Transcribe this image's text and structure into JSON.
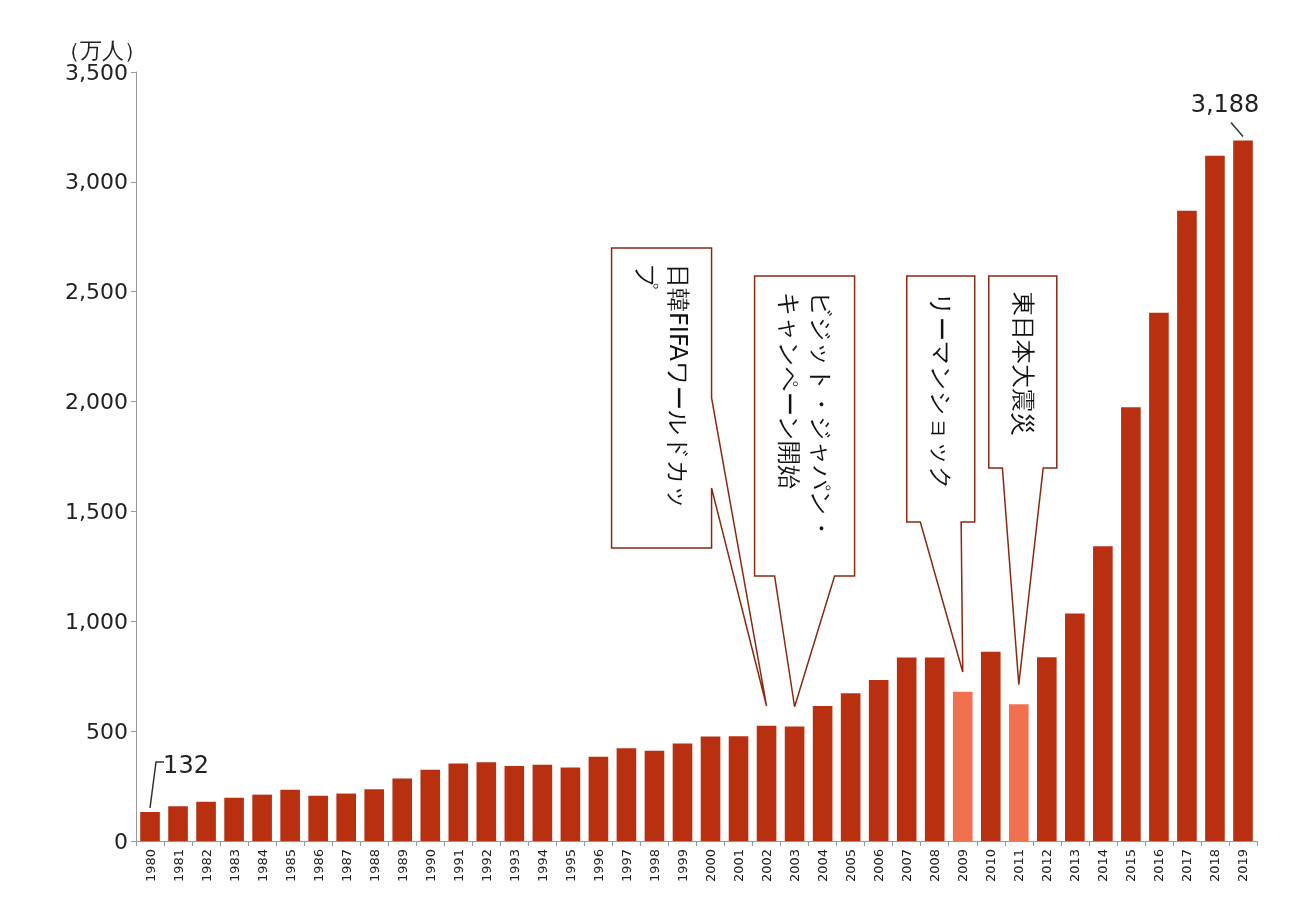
{
  "chart_data": {
    "type": "bar",
    "ylabel": "（万人）",
    "categories": [
      "1980",
      "1981",
      "1982",
      "1983",
      "1984",
      "1985",
      "1986",
      "1987",
      "1988",
      "1989",
      "1990",
      "1991",
      "1992",
      "1993",
      "1994",
      "1995",
      "1996",
      "1997",
      "1998",
      "1999",
      "2000",
      "2001",
      "2002",
      "2003",
      "2004",
      "2005",
      "2006",
      "2007",
      "2008",
      "2009",
      "2010",
      "2011",
      "2012",
      "2013",
      "2014",
      "2015",
      "2016",
      "2017",
      "2018",
      "2019"
    ],
    "values": [
      132,
      158,
      179,
      197,
      211,
      233,
      206,
      216,
      236,
      284,
      324,
      353,
      358,
      341,
      347,
      335,
      384,
      422,
      411,
      444,
      476,
      477,
      524,
      521,
      614,
      673,
      733,
      835,
      835,
      679,
      861,
      622,
      836,
      1036,
      1341,
      1974,
      2404,
      2869,
      3119,
      3188
    ],
    "colors": [
      "#b83010",
      "#b83010",
      "#b83010",
      "#b83010",
      "#b83010",
      "#b83010",
      "#b83010",
      "#b83010",
      "#b83010",
      "#b83010",
      "#b83010",
      "#b83010",
      "#b83010",
      "#b83010",
      "#b83010",
      "#b83010",
      "#b83010",
      "#b83010",
      "#b83010",
      "#b83010",
      "#b83010",
      "#b83010",
      "#b83010",
      "#b83010",
      "#b83010",
      "#b83010",
      "#b83010",
      "#b83010",
      "#b83010",
      "#f07050",
      "#b83010",
      "#f07050",
      "#b83010",
      "#b83010",
      "#b83010",
      "#b83010",
      "#b83010",
      "#b83010",
      "#b83010",
      "#b83010"
    ],
    "value_labels": [
      "132",
      null,
      null,
      null,
      null,
      null,
      null,
      null,
      null,
      null,
      null,
      null,
      null,
      null,
      null,
      null,
      null,
      null,
      null,
      null,
      null,
      null,
      null,
      null,
      null,
      null,
      null,
      null,
      null,
      null,
      null,
      null,
      null,
      null,
      null,
      null,
      null,
      null,
      null,
      "3,188"
    ],
    "ylim": [
      0,
      3500
    ],
    "yticks": [
      0,
      500,
      {
        "value": 1000,
        "label": "1,000"
      },
      {
        "value": 1500,
        "label": "1,500"
      },
      {
        "value": 2000,
        "label": "2,000"
      },
      {
        "value": 2500,
        "label": "2,500"
      },
      {
        "value": 3000,
        "label": "3,000"
      },
      {
        "value": 3500,
        "label": "3,500"
      }
    ],
    "grid": false,
    "annotations": [
      "日韓FIFAワールドカップ",
      "ビジット・ジャパン・キャンペーン開始",
      "リーマンショック",
      "東日本大震災"
    ]
  }
}
